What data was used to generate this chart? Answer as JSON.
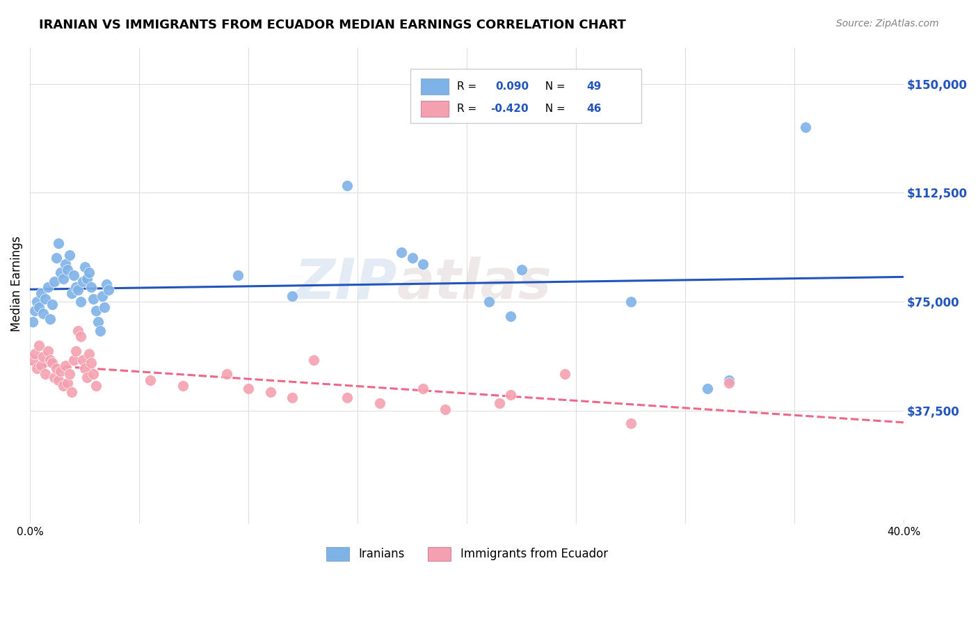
{
  "title": "IRANIAN VS IMMIGRANTS FROM ECUADOR MEDIAN EARNINGS CORRELATION CHART",
  "source": "Source: ZipAtlas.com",
  "ylabel": "Median Earnings",
  "yticks": [
    0,
    37500,
    75000,
    112500,
    150000
  ],
  "ytick_labels": [
    "",
    "$37,500",
    "$75,000",
    "$112,500",
    "$150,000"
  ],
  "watermark_top": "ZIP",
  "watermark_bot": "atlas",
  "blue_R": 0.09,
  "blue_N": 49,
  "pink_R": -0.42,
  "pink_N": 46,
  "blue_color": "#7EB3E8",
  "pink_color": "#F5A0B0",
  "blue_line_color": "#2255BB",
  "pink_line_color": "#EE6688",
  "legend_label_blue": "Iranians",
  "legend_label_pink": "Immigrants from Ecuador",
  "blue_scatter_x": [
    0.001,
    0.002,
    0.003,
    0.004,
    0.005,
    0.006,
    0.007,
    0.008,
    0.009,
    0.01,
    0.011,
    0.012,
    0.013,
    0.014,
    0.015,
    0.016,
    0.017,
    0.018,
    0.019,
    0.02,
    0.021,
    0.022,
    0.023,
    0.024,
    0.025,
    0.026,
    0.027,
    0.028,
    0.029,
    0.03,
    0.031,
    0.032,
    0.033,
    0.034,
    0.035,
    0.036,
    0.095,
    0.12,
    0.145,
    0.17,
    0.175,
    0.18,
    0.21,
    0.22,
    0.225,
    0.275,
    0.31,
    0.32,
    0.355
  ],
  "blue_scatter_y": [
    68000,
    72000,
    75000,
    73000,
    78000,
    71000,
    76000,
    80000,
    69000,
    74000,
    82000,
    90000,
    95000,
    85000,
    83000,
    88000,
    86000,
    91000,
    78000,
    84000,
    80000,
    79000,
    75000,
    82000,
    87000,
    83000,
    85000,
    80000,
    76000,
    72000,
    68000,
    65000,
    77000,
    73000,
    81000,
    79000,
    84000,
    77000,
    115000,
    92000,
    90000,
    88000,
    75000,
    70000,
    86000,
    75000,
    45000,
    48000,
    135000
  ],
  "pink_scatter_x": [
    0.001,
    0.002,
    0.003,
    0.004,
    0.005,
    0.006,
    0.007,
    0.008,
    0.009,
    0.01,
    0.011,
    0.012,
    0.013,
    0.014,
    0.015,
    0.016,
    0.017,
    0.018,
    0.019,
    0.02,
    0.021,
    0.022,
    0.023,
    0.024,
    0.025,
    0.026,
    0.027,
    0.028,
    0.029,
    0.03,
    0.055,
    0.07,
    0.09,
    0.1,
    0.11,
    0.12,
    0.13,
    0.145,
    0.16,
    0.18,
    0.19,
    0.215,
    0.22,
    0.245,
    0.275,
    0.32
  ],
  "pink_scatter_y": [
    55000,
    57000,
    52000,
    60000,
    53000,
    56000,
    50000,
    58000,
    55000,
    54000,
    49000,
    52000,
    48000,
    51000,
    46000,
    53000,
    47000,
    50000,
    44000,
    55000,
    58000,
    65000,
    63000,
    55000,
    52000,
    49000,
    57000,
    54000,
    50000,
    46000,
    48000,
    46000,
    50000,
    45000,
    44000,
    42000,
    55000,
    42000,
    40000,
    45000,
    38000,
    40000,
    43000,
    50000,
    33000,
    47000
  ],
  "xmin": 0,
  "xmax": 0.4,
  "ymin": 0,
  "ymax": 162500,
  "background_color": "#FFFFFF",
  "grid_color": "#DDDDDD"
}
